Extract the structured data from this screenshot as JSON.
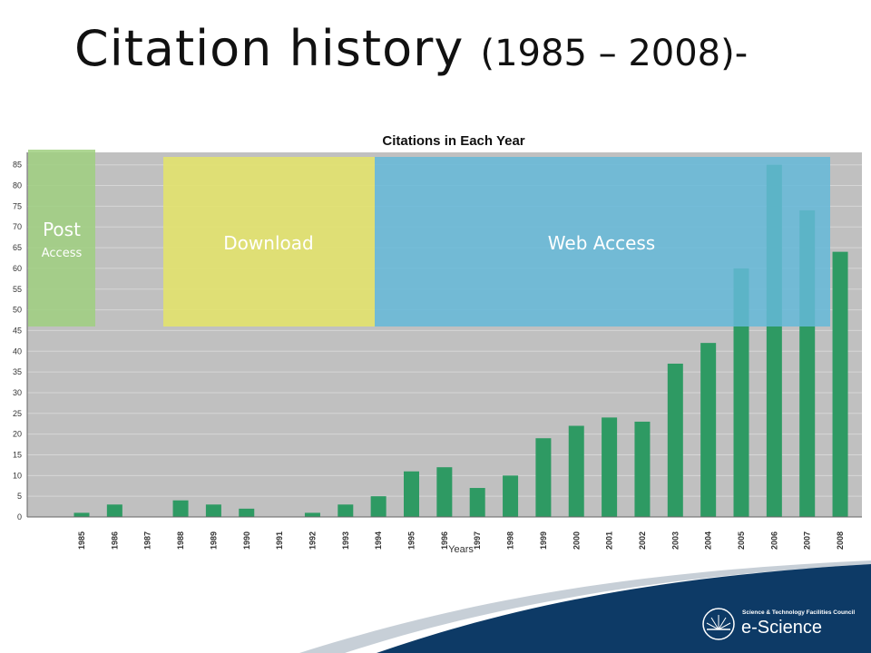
{
  "slide": {
    "title_main": "Citation history ",
    "title_sub": "(1985 – 2008)-"
  },
  "overlays": {
    "post_access_line1": "Post",
    "post_access_line2": "Access",
    "download": "Download",
    "web_access": "Web Access"
  },
  "logo": {
    "council": "Science & Technology Facilities Council",
    "brand": "e-Science"
  },
  "colors": {
    "bar": "#2e9a63",
    "plot_background": "#c0c0c0",
    "post_access_band": "#9fcf7f",
    "download_band": "#e2e26a",
    "web_access_band": "#64b8d8",
    "footer_navy": "#0d3a66"
  },
  "chart_data": {
    "type": "bar",
    "title": "Citations in Each Year",
    "xlabel": "Years",
    "ylabel": "",
    "categories": [
      "1985",
      "1986",
      "1987",
      "1988",
      "1989",
      "1990",
      "1991",
      "1992",
      "1993",
      "1994",
      "1995",
      "1996",
      "1997",
      "1998",
      "1999",
      "2000",
      "2001",
      "2002",
      "2003",
      "2004",
      "2005",
      "2006",
      "2007",
      "2008"
    ],
    "values": [
      1,
      3,
      0,
      4,
      3,
      2,
      0,
      1,
      3,
      5,
      11,
      12,
      7,
      10,
      19,
      22,
      24,
      23,
      37,
      42,
      60,
      85,
      74,
      64
    ],
    "ylim": [
      0,
      88
    ],
    "yticks": [
      0,
      5,
      10,
      15,
      20,
      25,
      30,
      35,
      40,
      45,
      50,
      55,
      60,
      65,
      70,
      75,
      80,
      85
    ],
    "grid": true,
    "legend": "none"
  }
}
